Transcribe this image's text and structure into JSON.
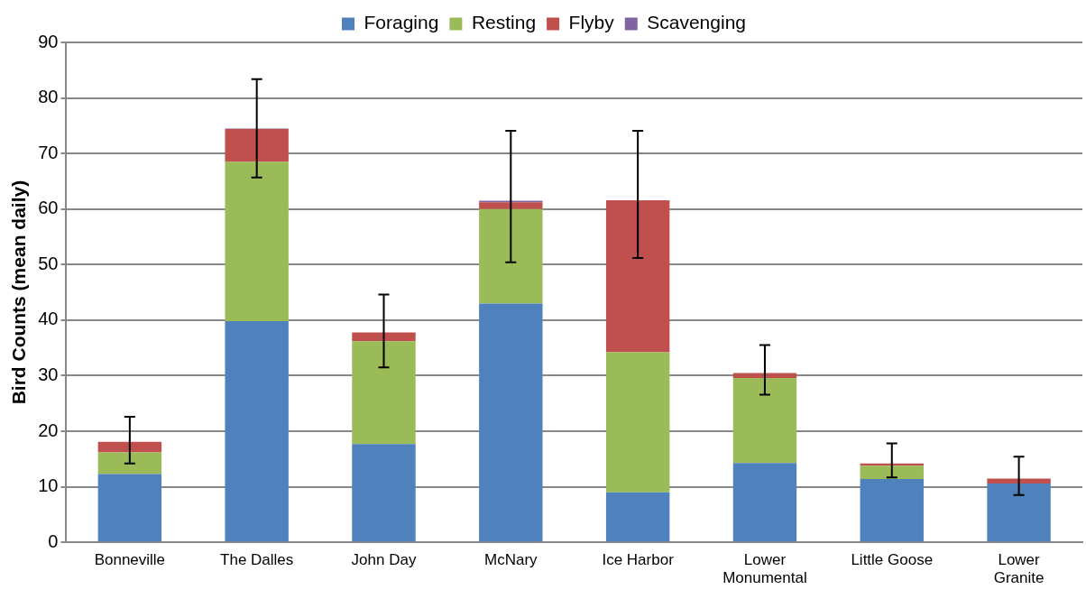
{
  "chart_data": {
    "type": "bar",
    "stacked": true,
    "ylabel": "Bird Counts (mean daily)",
    "categories": [
      "Bonneville",
      "The Dalles",
      "John Day",
      "McNary",
      "Ice Harbor",
      "Lower Monumental",
      "Little Goose",
      "Lower Granite"
    ],
    "series": [
      {
        "name": "Foraging",
        "color": "#4f81bd",
        "values": [
          12.3,
          39.8,
          17.7,
          43.0,
          9.0,
          14.3,
          11.4,
          10.6
        ]
      },
      {
        "name": "Resting",
        "color": "#9bbb59",
        "values": [
          3.9,
          28.7,
          18.5,
          17.0,
          25.2,
          15.3,
          2.4,
          0
        ]
      },
      {
        "name": "Flyby",
        "color": "#c0504d",
        "values": [
          1.9,
          5.9,
          1.6,
          1.2,
          27.4,
          0.9,
          0.4,
          0.9
        ]
      },
      {
        "name": "Scavenging",
        "color": "#8064a2",
        "values": [
          0,
          0.1,
          0,
          0.3,
          0,
          0,
          0,
          0
        ],
        "errors": [
          [
            14.2,
            22.6
          ],
          [
            65.7,
            83.4
          ],
          [
            31.5,
            44.6
          ],
          [
            50.4,
            74.1
          ],
          [
            51.2,
            74.1
          ],
          [
            26.6,
            35.5
          ],
          [
            11.7,
            17.8
          ],
          [
            8.5,
            15.4
          ]
        ]
      }
    ],
    "ylim": [
      0,
      90
    ],
    "yticks": [
      0,
      10,
      20,
      30,
      40,
      50,
      60,
      70,
      80,
      90
    ],
    "grid": "y",
    "legend": "top"
  }
}
